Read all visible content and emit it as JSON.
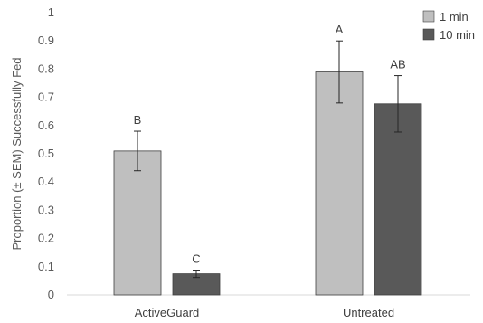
{
  "chart_data": {
    "type": "bar",
    "categories": [
      "ActiveGuard",
      "Untreated"
    ],
    "series": [
      {
        "name": "1 min",
        "color": "#bfbfbf",
        "values": [
          0.51,
          0.79
        ],
        "sem": [
          0.07,
          0.11
        ],
        "letters": [
          "B",
          "A"
        ]
      },
      {
        "name": "10 min",
        "color": "#595959",
        "values": [
          0.075,
          0.677
        ],
        "sem": [
          0.013,
          0.1
        ],
        "letters": [
          "C",
          "AB"
        ]
      }
    ],
    "ylabel": "Proportion (± SEM) Successfully Fed",
    "xlabel": "",
    "ylim": [
      0,
      1
    ],
    "yticks": [
      {
        "value": 0,
        "label": "0"
      },
      {
        "value": 0.1,
        "label": "0.1"
      },
      {
        "value": 0.2,
        "label": "0.2"
      },
      {
        "value": 0.3,
        "label": "0.3"
      },
      {
        "value": 0.4,
        "label": "0.4"
      },
      {
        "value": 0.5,
        "label": "0.5"
      },
      {
        "value": 0.6,
        "label": "0.6"
      },
      {
        "value": 0.7,
        "label": "0.7"
      },
      {
        "value": 0.8,
        "label": "0.8"
      },
      {
        "value": 0.9,
        "label": "0.9"
      },
      {
        "value": 1,
        "label": "1"
      }
    ],
    "grid": false,
    "legend_position": "top-right",
    "axis_color": "#d9d9d9",
    "error_bar_color": "#262626"
  }
}
